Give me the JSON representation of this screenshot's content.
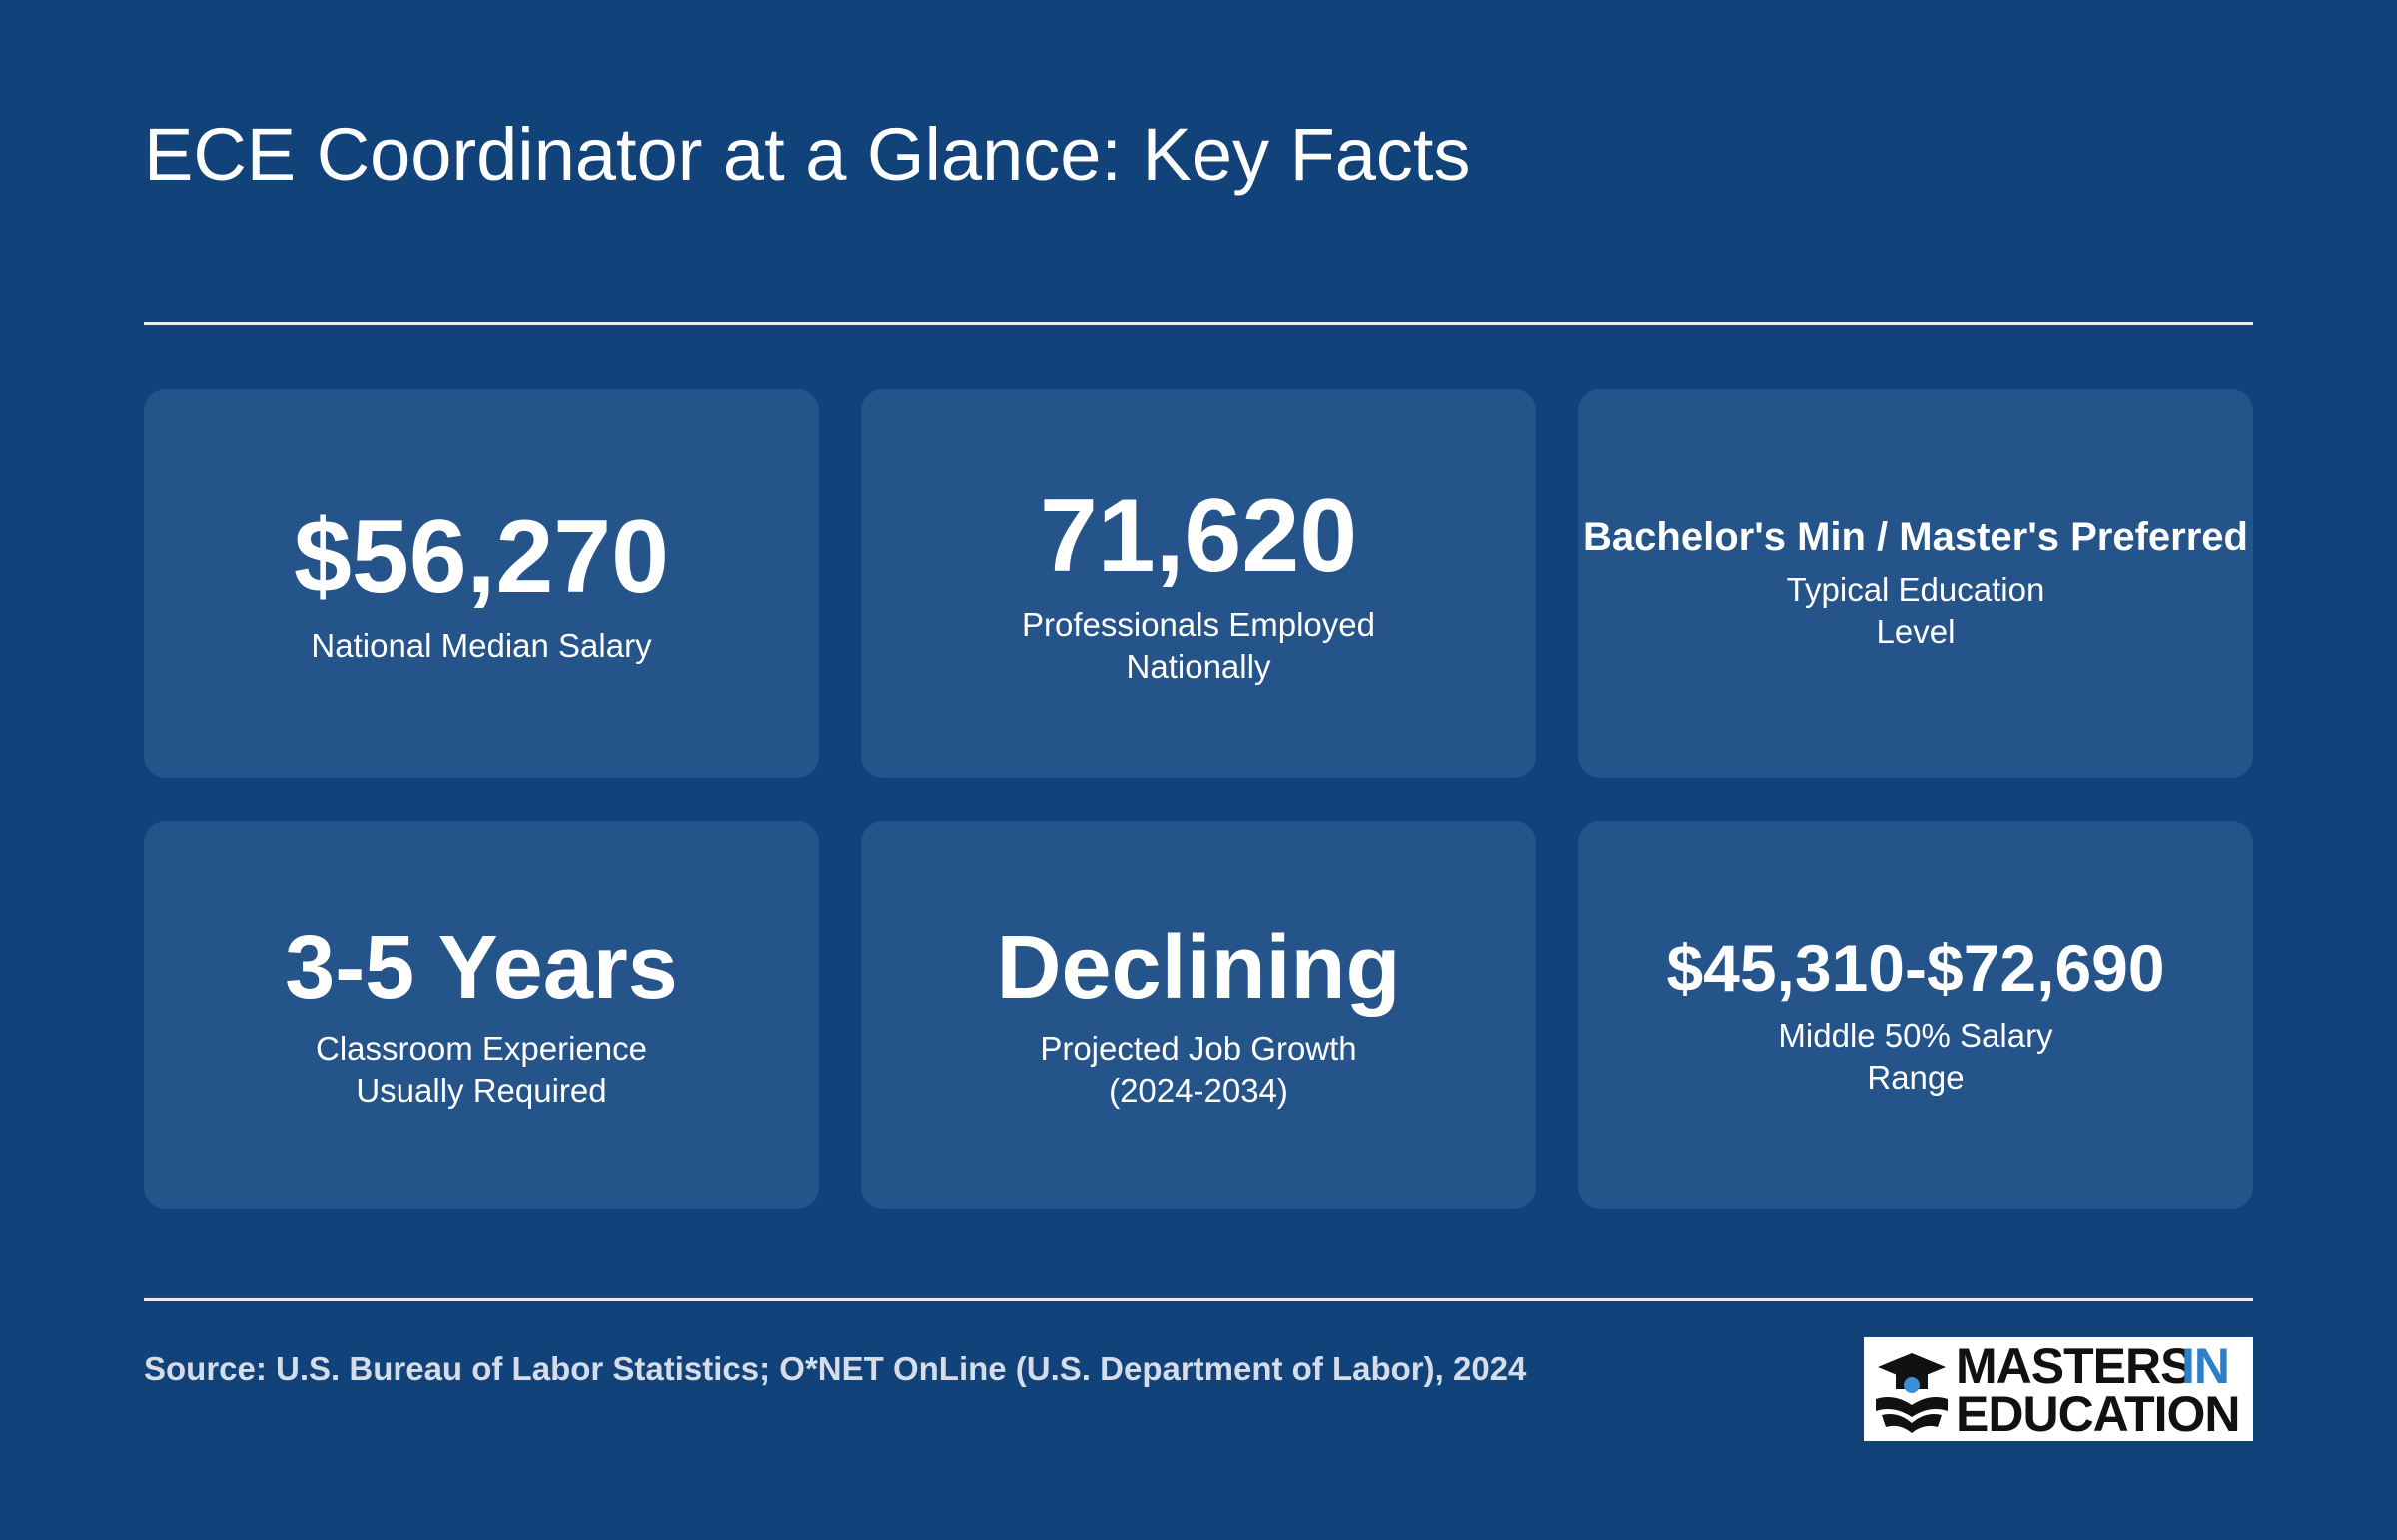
{
  "header": {
    "title": "ECE Coordinator at a Glance: Key Facts"
  },
  "cards": [
    {
      "value": "$56,270",
      "size": "large",
      "label": [
        "National Median Salary"
      ]
    },
    {
      "value": "71,620",
      "size": "large",
      "label": [
        "Professionals Employed",
        "Nationally"
      ]
    },
    {
      "value": "Bachelor's Min / Master's Preferred",
      "size": "small",
      "label": [
        "Typical Education",
        "Level"
      ]
    },
    {
      "value": "3-5 Years",
      "size": "medium",
      "label": [
        "Classroom Experience",
        "Usually Required"
      ]
    },
    {
      "value": "Declining",
      "size": "medium",
      "label": [
        "Projected Job Growth",
        "(2024-2034)"
      ]
    },
    {
      "value": "$45,310-$72,690",
      "size": "mid",
      "label": [
        "Middle 50% Salary",
        "Range"
      ]
    }
  ],
  "footer": {
    "source": "Source: U.S. Bureau of Labor Statistics; O*NET OnLine (U.S. Department of Labor), 2024",
    "logo": {
      "line1": "MASTERS",
      "accent": "IN",
      "line2": "EDUCATION"
    }
  }
}
